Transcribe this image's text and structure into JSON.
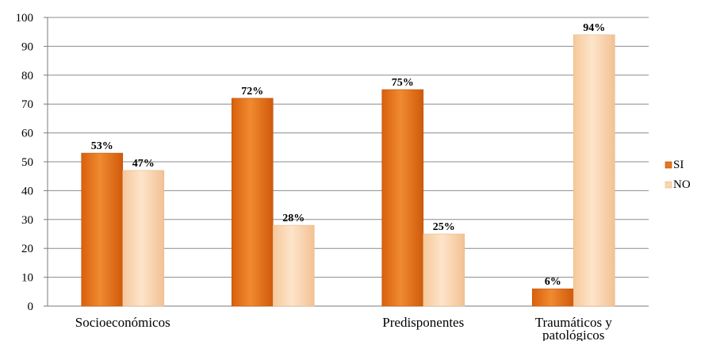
{
  "chart_data": {
    "type": "bar",
    "categories": [
      "Socioeconómicos",
      "",
      "Predisponentes",
      "Traumáticos y patológicos"
    ],
    "category_lines": [
      [
        "Socioeconómicos"
      ],
      [],
      [
        "Predisponentes"
      ],
      [
        "Traumáticos y",
        "patológicos"
      ]
    ],
    "series": [
      {
        "name": "SI",
        "values": [
          53,
          72,
          75,
          6
        ],
        "labels": [
          "53%",
          "72%",
          "75%",
          "6%"
        ],
        "color": "#e8741d"
      },
      {
        "name": "NO",
        "values": [
          47,
          28,
          25,
          94
        ],
        "labels": [
          "47%",
          "28%",
          "25%",
          "94%"
        ],
        "color": "#fad5b0"
      }
    ],
    "title": "",
    "xlabel": "",
    "ylabel": "",
    "ylim": [
      0,
      100
    ],
    "yticks": [
      0,
      10,
      20,
      30,
      40,
      50,
      60,
      70,
      80,
      90,
      100
    ],
    "grid": true,
    "legend_position": "right"
  }
}
